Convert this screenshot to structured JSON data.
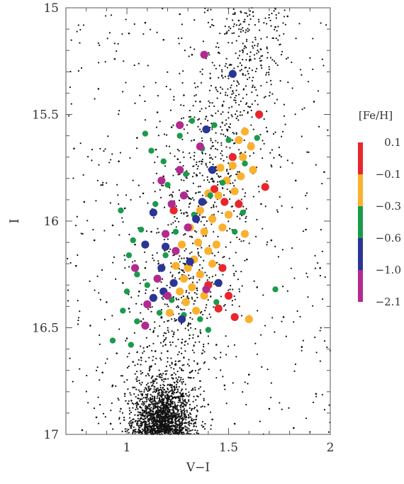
{
  "chart_data": {
    "type": "scatter",
    "title": "",
    "xlabel": "V−I",
    "ylabel": "I",
    "xlim": [
      0.7,
      2.0
    ],
    "ylim": [
      17.0,
      15.0
    ],
    "y_inverted": true,
    "x_ticks": [
      {
        "value": 1.0,
        "label": "1"
      },
      {
        "value": 1.5,
        "label": "1.5"
      },
      {
        "value": 2.0,
        "label": "2"
      }
    ],
    "y_ticks": [
      {
        "value": 15.0,
        "label": "15"
      },
      {
        "value": 15.5,
        "label": "15.5"
      },
      {
        "value": 16.0,
        "label": "16"
      },
      {
        "value": 16.5,
        "label": "16.5"
      },
      {
        "value": 17.0,
        "label": "17"
      }
    ],
    "grid": false,
    "background_field": {
      "description": "field stars plotted as small black dots; dense red clump / main sequence region near lower left",
      "color": "#111111",
      "points": [
        {
          "x": 0.78,
          "y": 16.98
        },
        {
          "x": 0.85,
          "y": 16.92
        },
        {
          "x": 0.92,
          "y": 16.95
        },
        {
          "x": 0.97,
          "y": 16.88
        },
        {
          "x": 1.02,
          "y": 16.97
        },
        {
          "x": 1.05,
          "y": 16.85
        },
        {
          "x": 1.08,
          "y": 16.91
        },
        {
          "x": 1.11,
          "y": 16.79
        },
        {
          "x": 1.14,
          "y": 16.94
        },
        {
          "x": 1.16,
          "y": 16.83
        },
        {
          "x": 1.19,
          "y": 16.74
        },
        {
          "x": 1.21,
          "y": 16.89
        },
        {
          "x": 1.24,
          "y": 16.67
        },
        {
          "x": 1.26,
          "y": 16.96
        },
        {
          "x": 1.29,
          "y": 16.81
        },
        {
          "x": 1.31,
          "y": 16.71
        },
        {
          "x": 1.34,
          "y": 16.93
        },
        {
          "x": 1.37,
          "y": 16.62
        },
        {
          "x": 1.4,
          "y": 16.86
        },
        {
          "x": 1.44,
          "y": 16.58
        },
        {
          "x": 1.48,
          "y": 16.77
        },
        {
          "x": 1.53,
          "y": 16.95
        },
        {
          "x": 1.6,
          "y": 16.72
        },
        {
          "x": 1.7,
          "y": 16.88
        },
        {
          "x": 1.82,
          "y": 16.97
        },
        {
          "x": 1.93,
          "y": 16.81
        },
        {
          "x": 0.88,
          "y": 16.71
        },
        {
          "x": 0.95,
          "y": 16.62
        },
        {
          "x": 1.0,
          "y": 16.55
        },
        {
          "x": 1.03,
          "y": 16.66
        },
        {
          "x": 1.07,
          "y": 16.47
        },
        {
          "x": 1.1,
          "y": 16.59
        },
        {
          "x": 1.13,
          "y": 16.52
        },
        {
          "x": 1.17,
          "y": 16.45
        },
        {
          "x": 1.2,
          "y": 16.61
        },
        {
          "x": 1.23,
          "y": 16.53
        },
        {
          "x": 1.27,
          "y": 16.57
        },
        {
          "x": 1.3,
          "y": 16.49
        },
        {
          "x": 1.35,
          "y": 16.54
        },
        {
          "x": 0.82,
          "y": 16.49
        },
        {
          "x": 0.9,
          "y": 16.38
        },
        {
          "x": 0.98,
          "y": 16.29
        },
        {
          "x": 1.01,
          "y": 16.41
        },
        {
          "x": 1.06,
          "y": 16.33
        },
        {
          "x": 1.09,
          "y": 16.22
        },
        {
          "x": 1.12,
          "y": 16.36
        },
        {
          "x": 1.15,
          "y": 16.27
        },
        {
          "x": 1.22,
          "y": 16.44
        },
        {
          "x": 0.75,
          "y": 16.21
        },
        {
          "x": 0.84,
          "y": 16.09
        },
        {
          "x": 0.93,
          "y": 16.02
        },
        {
          "x": 0.99,
          "y": 15.94
        },
        {
          "x": 1.04,
          "y": 16.11
        },
        {
          "x": 1.08,
          "y": 15.87
        },
        {
          "x": 1.12,
          "y": 16.05
        },
        {
          "x": 1.18,
          "y": 15.79
        },
        {
          "x": 1.25,
          "y": 15.71
        },
        {
          "x": 1.33,
          "y": 15.62
        },
        {
          "x": 1.36,
          "y": 15.44
        },
        {
          "x": 1.41,
          "y": 15.33
        },
        {
          "x": 1.45,
          "y": 15.21
        },
        {
          "x": 1.49,
          "y": 15.12
        },
        {
          "x": 1.55,
          "y": 15.06
        },
        {
          "x": 1.62,
          "y": 15.02
        },
        {
          "x": 1.58,
          "y": 15.18
        },
        {
          "x": 1.66,
          "y": 15.27
        },
        {
          "x": 1.73,
          "y": 15.09
        },
        {
          "x": 1.79,
          "y": 15.04
        },
        {
          "x": 1.52,
          "y": 15.39
        },
        {
          "x": 1.47,
          "y": 15.46
        },
        {
          "x": 1.57,
          "y": 15.31
        },
        {
          "x": 1.39,
          "y": 15.51
        },
        {
          "x": 1.28,
          "y": 15.41
        },
        {
          "x": 1.22,
          "y": 15.56
        },
        {
          "x": 1.15,
          "y": 15.49
        },
        {
          "x": 1.05,
          "y": 15.61
        },
        {
          "x": 0.96,
          "y": 15.72
        },
        {
          "x": 0.88,
          "y": 15.83
        },
        {
          "x": 0.79,
          "y": 15.91
        },
        {
          "x": 0.74,
          "y": 15.66
        },
        {
          "x": 0.86,
          "y": 15.38
        },
        {
          "x": 0.94,
          "y": 15.24
        },
        {
          "x": 1.01,
          "y": 15.12
        },
        {
          "x": 1.09,
          "y": 15.07
        },
        {
          "x": 1.18,
          "y": 15.15
        },
        {
          "x": 1.26,
          "y": 15.03
        },
        {
          "x": 1.32,
          "y": 15.22
        },
        {
          "x": 1.69,
          "y": 15.58
        },
        {
          "x": 1.75,
          "y": 15.69
        },
        {
          "x": 1.83,
          "y": 15.81
        },
        {
          "x": 1.88,
          "y": 16.04
        },
        {
          "x": 1.95,
          "y": 16.22
        },
        {
          "x": 1.71,
          "y": 16.09
        },
        {
          "x": 1.64,
          "y": 16.31
        },
        {
          "x": 1.77,
          "y": 16.45
        },
        {
          "x": 1.86,
          "y": 16.59
        },
        {
          "x": 1.92,
          "y": 15.44
        },
        {
          "x": 1.97,
          "y": 15.77
        },
        {
          "x": 1.66,
          "y": 15.92
        },
        {
          "x": 1.59,
          "y": 16.18
        },
        {
          "x": 1.05,
          "y": 16.75
        },
        {
          "x": 1.12,
          "y": 16.68
        },
        {
          "x": 1.18,
          "y": 16.87
        },
        {
          "x": 1.25,
          "y": 16.79
        },
        {
          "x": 1.09,
          "y": 16.98
        },
        {
          "x": 0.99,
          "y": 16.81
        },
        {
          "x": 0.93,
          "y": 16.77
        },
        {
          "x": 1.14,
          "y": 16.61
        },
        {
          "x": 1.2,
          "y": 16.97
        },
        {
          "x": 1.32,
          "y": 16.88
        },
        {
          "x": 1.16,
          "y": 16.72
        },
        {
          "x": 1.22,
          "y": 16.82
        },
        {
          "x": 1.07,
          "y": 16.64
        },
        {
          "x": 1.28,
          "y": 16.64
        },
        {
          "x": 1.11,
          "y": 16.86
        },
        {
          "x": 1.03,
          "y": 16.78
        },
        {
          "x": 1.24,
          "y": 16.92
        },
        {
          "x": 1.19,
          "y": 16.58
        },
        {
          "x": 1.36,
          "y": 16.75
        },
        {
          "x": 1.42,
          "y": 16.93
        }
      ]
    },
    "series": [
      {
        "name": "0.1",
        "color": "#e8262b",
        "marker_size": "large",
        "points": [
          {
            "x": 1.65,
            "y": 15.5
          },
          {
            "x": 1.52,
            "y": 15.7
          },
          {
            "x": 1.43,
            "y": 15.85
          },
          {
            "x": 1.55,
            "y": 15.92
          },
          {
            "x": 1.48,
            "y": 15.91
          },
          {
            "x": 1.23,
            "y": 15.95
          },
          {
            "x": 1.68,
            "y": 15.84
          },
          {
            "x": 1.47,
            "y": 16.22
          },
          {
            "x": 1.4,
            "y": 16.3
          },
          {
            "x": 1.45,
            "y": 16.41
          },
          {
            "x": 1.53,
            "y": 16.45
          },
          {
            "x": 1.5,
            "y": 16.35
          }
        ]
      },
      {
        "name": "−0.1",
        "color": "#f9b12e",
        "marker_size": "large",
        "points": [
          {
            "x": 1.55,
            "y": 15.62
          },
          {
            "x": 1.58,
            "y": 15.58
          },
          {
            "x": 1.61,
            "y": 15.65
          },
          {
            "x": 1.52,
            "y": 15.74
          },
          {
            "x": 1.49,
            "y": 15.81
          },
          {
            "x": 1.56,
            "y": 15.79
          },
          {
            "x": 1.45,
            "y": 15.88
          },
          {
            "x": 1.5,
            "y": 15.97
          },
          {
            "x": 1.42,
            "y": 15.99
          },
          {
            "x": 1.38,
            "y": 16.05
          },
          {
            "x": 1.35,
            "y": 16.1
          },
          {
            "x": 1.4,
            "y": 16.14
          },
          {
            "x": 1.33,
            "y": 16.18
          },
          {
            "x": 1.3,
            "y": 16.22
          },
          {
            "x": 1.36,
            "y": 16.25
          },
          {
            "x": 1.28,
            "y": 16.27
          },
          {
            "x": 1.32,
            "y": 16.31
          },
          {
            "x": 1.26,
            "y": 16.33
          },
          {
            "x": 1.42,
            "y": 16.2
          },
          {
            "x": 1.44,
            "y": 16.11
          },
          {
            "x": 1.47,
            "y": 16.03
          },
          {
            "x": 1.53,
            "y": 15.86
          },
          {
            "x": 1.57,
            "y": 15.7
          },
          {
            "x": 1.4,
            "y": 15.87
          },
          {
            "x": 1.36,
            "y": 15.95
          },
          {
            "x": 1.31,
            "y": 16.03
          },
          {
            "x": 1.27,
            "y": 16.11
          },
          {
            "x": 1.24,
            "y": 16.21
          },
          {
            "x": 1.29,
            "y": 16.38
          },
          {
            "x": 1.34,
            "y": 16.42
          },
          {
            "x": 1.21,
            "y": 16.43
          },
          {
            "x": 1.6,
            "y": 16.46
          },
          {
            "x": 1.58,
            "y": 16.06
          },
          {
            "x": 1.62,
            "y": 15.76
          },
          {
            "x": 1.46,
            "y": 15.75
          },
          {
            "x": 1.38,
            "y": 16.35
          }
        ]
      },
      {
        "name": "−0.3",
        "color": "#1a9b4b",
        "marker_size": "small",
        "points": [
          {
            "x": 1.09,
            "y": 15.59
          },
          {
            "x": 1.12,
            "y": 15.67
          },
          {
            "x": 1.18,
            "y": 15.72
          },
          {
            "x": 1.26,
            "y": 15.6
          },
          {
            "x": 1.32,
            "y": 15.53
          },
          {
            "x": 1.43,
            "y": 15.55
          },
          {
            "x": 1.5,
            "y": 15.62
          },
          {
            "x": 1.37,
            "y": 15.66
          },
          {
            "x": 1.29,
            "y": 15.78
          },
          {
            "x": 1.2,
            "y": 15.83
          },
          {
            "x": 1.14,
            "y": 15.92
          },
          {
            "x": 1.07,
            "y": 16.04
          },
          {
            "x": 1.03,
            "y": 16.09
          },
          {
            "x": 0.97,
            "y": 15.95
          },
          {
            "x": 1.01,
            "y": 16.16
          },
          {
            "x": 1.05,
            "y": 16.25
          },
          {
            "x": 1.1,
            "y": 16.3
          },
          {
            "x": 1.0,
            "y": 16.33
          },
          {
            "x": 0.98,
            "y": 16.42
          },
          {
            "x": 1.05,
            "y": 16.47
          },
          {
            "x": 1.16,
            "y": 16.43
          },
          {
            "x": 1.22,
            "y": 16.37
          },
          {
            "x": 1.28,
            "y": 16.44
          },
          {
            "x": 1.36,
            "y": 16.46
          },
          {
            "x": 1.4,
            "y": 16.51
          },
          {
            "x": 1.33,
            "y": 15.97
          },
          {
            "x": 1.41,
            "y": 15.88
          },
          {
            "x": 1.47,
            "y": 15.82
          },
          {
            "x": 1.58,
            "y": 15.73
          },
          {
            "x": 1.64,
            "y": 15.61
          },
          {
            "x": 1.53,
            "y": 16.05
          },
          {
            "x": 1.57,
            "y": 15.96
          },
          {
            "x": 1.73,
            "y": 16.32
          },
          {
            "x": 0.93,
            "y": 16.56
          },
          {
            "x": 1.02,
            "y": 16.58
          },
          {
            "x": 1.44,
            "y": 16.38
          },
          {
            "x": 1.24,
            "y": 16.05
          },
          {
            "x": 1.19,
            "y": 16.16
          }
        ]
      },
      {
        "name": "−0.6",
        "color": "#2b3595",
        "marker_size": "large",
        "points": [
          {
            "x": 1.52,
            "y": 15.31
          },
          {
            "x": 1.39,
            "y": 15.57
          },
          {
            "x": 1.37,
            "y": 15.91
          },
          {
            "x": 1.34,
            "y": 15.99
          },
          {
            "x": 1.13,
            "y": 15.96
          },
          {
            "x": 1.09,
            "y": 16.11
          },
          {
            "x": 1.19,
            "y": 16.12
          },
          {
            "x": 1.17,
            "y": 16.22
          },
          {
            "x": 1.23,
            "y": 16.29
          },
          {
            "x": 1.13,
            "y": 16.36
          },
          {
            "x": 1.18,
            "y": 16.33
          },
          {
            "x": 1.27,
            "y": 16.46
          },
          {
            "x": 1.45,
            "y": 16.29
          },
          {
            "x": 1.31,
            "y": 16.19
          },
          {
            "x": 1.42,
            "y": 15.76
          }
        ]
      },
      {
        "name": "−1.0",
        "color": "#b32a8f",
        "marker_size": "large",
        "points": [
          {
            "x": 1.38,
            "y": 15.22
          },
          {
            "x": 1.26,
            "y": 15.55
          },
          {
            "x": 1.36,
            "y": 15.65
          },
          {
            "x": 1.26,
            "y": 15.76
          },
          {
            "x": 1.17,
            "y": 15.81
          },
          {
            "x": 1.28,
            "y": 15.88
          },
          {
            "x": 1.22,
            "y": 15.92
          },
          {
            "x": 1.19,
            "y": 16.06
          },
          {
            "x": 1.24,
            "y": 16.14
          },
          {
            "x": 1.04,
            "y": 16.22
          },
          {
            "x": 1.15,
            "y": 16.27
          },
          {
            "x": 1.2,
            "y": 16.35
          },
          {
            "x": 1.1,
            "y": 16.39
          },
          {
            "x": 1.09,
            "y": 16.49
          },
          {
            "x": 1.3,
            "y": 16.03
          },
          {
            "x": 1.39,
            "y": 16.32
          }
        ]
      }
    ],
    "colorbar": {
      "title": "[Fe/H]",
      "labels": [
        "0.1",
        "−0.1",
        "−0.3",
        "−0.6",
        "−1.0",
        "−2.1"
      ],
      "colors": [
        "#e8262b",
        "#f9b12e",
        "#1a9b4b",
        "#2b3595",
        "#b32a8f"
      ]
    }
  }
}
